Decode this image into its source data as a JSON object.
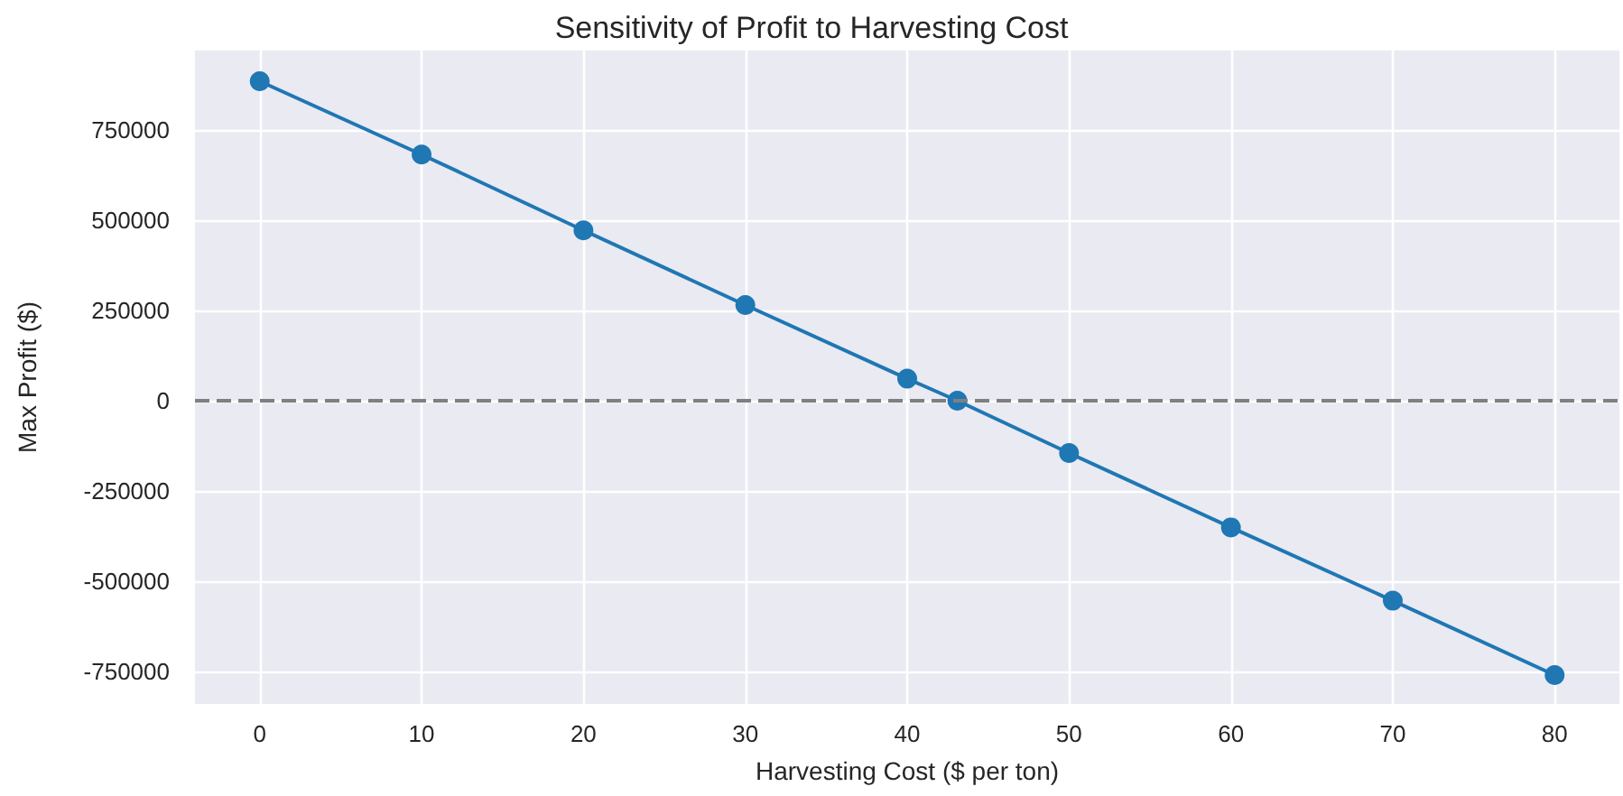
{
  "chart_data": {
    "type": "line",
    "title": "Sensitivity of Profit to Harvesting Cost",
    "xlabel": "Harvesting Cost ($ per ton)",
    "ylabel": "Max Profit ($)",
    "x": [
      0,
      10,
      20,
      30,
      40,
      43.1,
      50,
      60,
      70,
      80
    ],
    "series": [
      {
        "color": "#1f77b4",
        "values": [
          885000,
          682000,
          472000,
          265000,
          61000,
          0,
          -145000,
          -351000,
          -554000,
          -760000
        ]
      }
    ],
    "xlim": [
      -4,
      84
    ],
    "xticks": [
      0,
      10,
      20,
      30,
      40,
      50,
      60,
      70,
      80
    ],
    "ylim": [
      -840000,
      970000
    ],
    "yticks": [
      -750000,
      -500000,
      -250000,
      0,
      250000,
      500000,
      750000
    ],
    "ref_lines": [
      {
        "axis": "y",
        "value": 0,
        "color": "#808080",
        "line_style": "dashed"
      }
    ],
    "grid": true,
    "marker": "circle",
    "line_style": "solid"
  }
}
